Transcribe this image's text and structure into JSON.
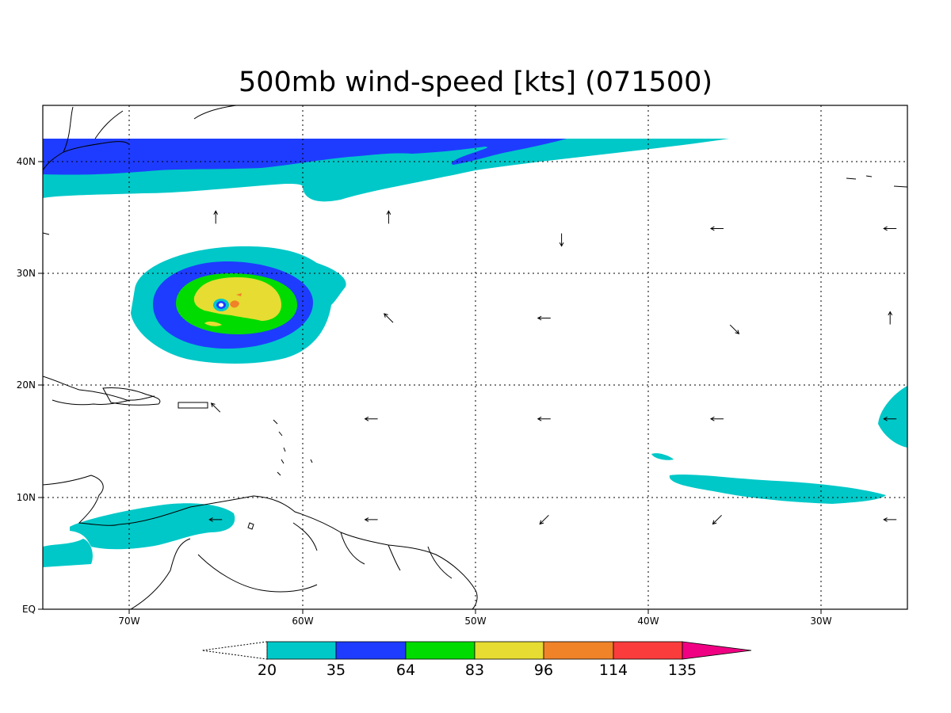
{
  "title": "500mb wind-speed [kts] (071500)",
  "lon_labels": [
    "70W",
    "60W",
    "50W",
    "40W",
    "30W"
  ],
  "lat_labels": [
    "40N",
    "30N",
    "20N",
    "10N",
    "EQ"
  ],
  "colorbar": {
    "levels": [
      "20",
      "35",
      "64",
      "83",
      "96",
      "114",
      "135"
    ],
    "colors": [
      "#00c8c8",
      "#1e3cff",
      "#00dc00",
      "#e6dc32",
      "#f08228",
      "#fa3c3c",
      "#f00082"
    ]
  },
  "map_extent": {
    "lon_min": -75,
    "lon_max": -25,
    "lat_min": 0,
    "lat_max": 45
  },
  "wind_arrows": [
    {
      "lon": -65,
      "lat": 35,
      "dir": "N"
    },
    {
      "lon": -55,
      "lat": 35,
      "dir": "N"
    },
    {
      "lon": -45,
      "lat": 33,
      "dir": "S"
    },
    {
      "lon": -36,
      "lat": 34,
      "dir": "W"
    },
    {
      "lon": -26,
      "lat": 34,
      "dir": "W"
    },
    {
      "lon": -55,
      "lat": 26,
      "dir": "NW"
    },
    {
      "lon": -46,
      "lat": 26,
      "dir": "W"
    },
    {
      "lon": -35,
      "lat": 25,
      "dir": "SE"
    },
    {
      "lon": -26,
      "lat": 26,
      "dir": "N"
    },
    {
      "lon": -65,
      "lat": 18,
      "dir": "NW"
    },
    {
      "lon": -56,
      "lat": 17,
      "dir": "W"
    },
    {
      "lon": -46,
      "lat": 17,
      "dir": "W"
    },
    {
      "lon": -36,
      "lat": 17,
      "dir": "W"
    },
    {
      "lon": -26,
      "lat": 17,
      "dir": "W"
    },
    {
      "lon": -65,
      "lat": 8,
      "dir": "W"
    },
    {
      "lon": -56,
      "lat": 8,
      "dir": "W"
    },
    {
      "lon": -46,
      "lat": 8,
      "dir": "SW"
    },
    {
      "lon": -36,
      "lat": 8,
      "dir": "SW"
    },
    {
      "lon": -26,
      "lat": 8,
      "dir": "W"
    }
  ]
}
